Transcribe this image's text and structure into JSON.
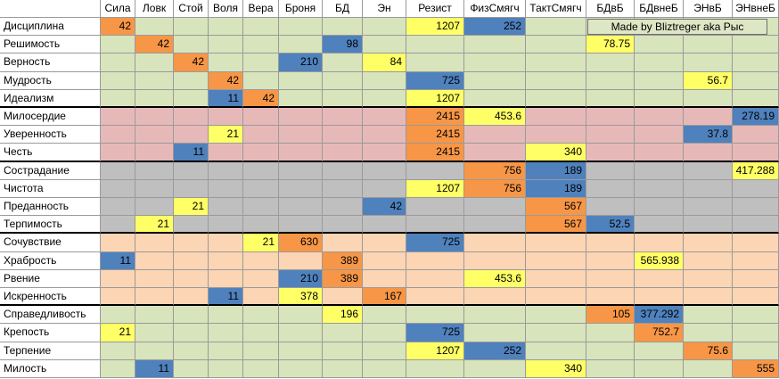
{
  "columns": [
    "Сила",
    "Ловк",
    "Стой",
    "Воля",
    "Вера",
    "Броня",
    "БД",
    "Эн",
    "Резист",
    "ФизСмягч",
    "ТактСмягч",
    "БДвБ",
    "БДвнеБ",
    "ЭНвБ",
    "ЭНвнеБ"
  ],
  "credit": "Made by Bliztreger aka Рыс",
  "colors": {
    "green": "#d8e4bc",
    "pink": "#e6b9b8",
    "gray": "#bfbfbf",
    "peach": "#fcd5b4",
    "orange": "#f79646",
    "yellow": "#ffff66",
    "blue": "#4f81bd"
  },
  "groups": [
    {
      "color": "green",
      "rows": [
        {
          "name": "Дисциплина",
          "cells": [
            {
              "c": 0,
              "v": "42",
              "t": "orange"
            },
            {
              "c": 8,
              "v": "1207",
              "t": "yellow"
            },
            {
              "c": 9,
              "v": "252",
              "t": "blue"
            }
          ]
        },
        {
          "name": "Решимость",
          "cells": [
            {
              "c": 1,
              "v": "42",
              "t": "orange"
            },
            {
              "c": 6,
              "v": "98",
              "t": "blue"
            },
            {
              "c": 11,
              "v": "78.75",
              "t": "yellow"
            }
          ]
        },
        {
          "name": "Верность",
          "cells": [
            {
              "c": 2,
              "v": "42",
              "t": "orange"
            },
            {
              "c": 5,
              "v": "210",
              "t": "blue"
            },
            {
              "c": 7,
              "v": "84",
              "t": "yellow"
            }
          ]
        },
        {
          "name": "Мудрость",
          "cells": [
            {
              "c": 3,
              "v": "42",
              "t": "orange"
            },
            {
              "c": 8,
              "v": "725",
              "t": "blue"
            },
            {
              "c": 13,
              "v": "56.7",
              "t": "yellow"
            }
          ]
        },
        {
          "name": "Идеализм",
          "cells": [
            {
              "c": 3,
              "v": "11",
              "t": "blue"
            },
            {
              "c": 4,
              "v": "42",
              "t": "orange"
            },
            {
              "c": 8,
              "v": "1207",
              "t": "yellow"
            }
          ]
        }
      ]
    },
    {
      "color": "pink",
      "rows": [
        {
          "name": "Милосердие",
          "cells": [
            {
              "c": 8,
              "v": "2415",
              "t": "orange"
            },
            {
              "c": 9,
              "v": "453.6",
              "t": "yellow"
            },
            {
              "c": 14,
              "v": "278.19",
              "t": "blue"
            }
          ]
        },
        {
          "name": "Уверенность",
          "cells": [
            {
              "c": 3,
              "v": "21",
              "t": "yellow"
            },
            {
              "c": 8,
              "v": "2415",
              "t": "orange"
            },
            {
              "c": 13,
              "v": "37.8",
              "t": "blue"
            }
          ]
        },
        {
          "name": "Честь",
          "cells": [
            {
              "c": 2,
              "v": "11",
              "t": "blue"
            },
            {
              "c": 8,
              "v": "2415",
              "t": "orange"
            },
            {
              "c": 10,
              "v": "340",
              "t": "yellow"
            }
          ]
        }
      ]
    },
    {
      "color": "gray",
      "rows": [
        {
          "name": "Сострадание",
          "cells": [
            {
              "c": 9,
              "v": "756",
              "t": "orange"
            },
            {
              "c": 10,
              "v": "189",
              "t": "blue"
            },
            {
              "c": 14,
              "v": "417.288",
              "t": "yellow"
            }
          ]
        },
        {
          "name": "Чистота",
          "cells": [
            {
              "c": 8,
              "v": "1207",
              "t": "yellow"
            },
            {
              "c": 9,
              "v": "756",
              "t": "orange"
            },
            {
              "c": 10,
              "v": "189",
              "t": "blue"
            }
          ]
        },
        {
          "name": "Преданность",
          "cells": [
            {
              "c": 2,
              "v": "21",
              "t": "yellow"
            },
            {
              "c": 7,
              "v": "42",
              "t": "blue"
            },
            {
              "c": 10,
              "v": "567",
              "t": "orange"
            }
          ]
        },
        {
          "name": "Терпимость",
          "cells": [
            {
              "c": 1,
              "v": "21",
              "t": "yellow"
            },
            {
              "c": 10,
              "v": "567",
              "t": "orange"
            },
            {
              "c": 11,
              "v": "52.5",
              "t": "blue"
            }
          ]
        }
      ]
    },
    {
      "color": "peach",
      "rows": [
        {
          "name": "Сочувствие",
          "cells": [
            {
              "c": 4,
              "v": "21",
              "t": "yellow"
            },
            {
              "c": 5,
              "v": "630",
              "t": "orange"
            },
            {
              "c": 8,
              "v": "725",
              "t": "blue"
            }
          ]
        },
        {
          "name": "Храбрость",
          "cells": [
            {
              "c": 0,
              "v": "11",
              "t": "blue"
            },
            {
              "c": 6,
              "v": "389",
              "t": "orange"
            },
            {
              "c": 12,
              "v": "565.938",
              "t": "yellow"
            }
          ]
        },
        {
          "name": "Рвение",
          "cells": [
            {
              "c": 5,
              "v": "210",
              "t": "blue"
            },
            {
              "c": 6,
              "v": "389",
              "t": "orange"
            },
            {
              "c": 9,
              "v": "453.6",
              "t": "yellow"
            }
          ]
        },
        {
          "name": "Искренность",
          "cells": [
            {
              "c": 3,
              "v": "11",
              "t": "blue"
            },
            {
              "c": 5,
              "v": "378",
              "t": "yellow"
            },
            {
              "c": 7,
              "v": "167",
              "t": "orange"
            }
          ]
        }
      ]
    },
    {
      "color": "green",
      "rows": [
        {
          "name": "Справедливость",
          "cells": [
            {
              "c": 6,
              "v": "196",
              "t": "yellow"
            },
            {
              "c": 11,
              "v": "105",
              "t": "orange"
            },
            {
              "c": 12,
              "v": "377.292",
              "t": "blue"
            }
          ]
        },
        {
          "name": "Крепость",
          "cells": [
            {
              "c": 0,
              "v": "21",
              "t": "yellow"
            },
            {
              "c": 8,
              "v": "725",
              "t": "blue"
            },
            {
              "c": 12,
              "v": "752.7",
              "t": "orange"
            }
          ]
        },
        {
          "name": "Терпение",
          "cells": [
            {
              "c": 8,
              "v": "1207",
              "t": "yellow"
            },
            {
              "c": 9,
              "v": "252",
              "t": "blue"
            },
            {
              "c": 13,
              "v": "75.6",
              "t": "orange"
            }
          ]
        },
        {
          "name": "Милость",
          "cells": [
            {
              "c": 1,
              "v": "11",
              "t": "blue"
            },
            {
              "c": 10,
              "v": "340",
              "t": "yellow"
            },
            {
              "c": 14,
              "v": "555",
              "t": "orange"
            }
          ]
        }
      ]
    }
  ]
}
